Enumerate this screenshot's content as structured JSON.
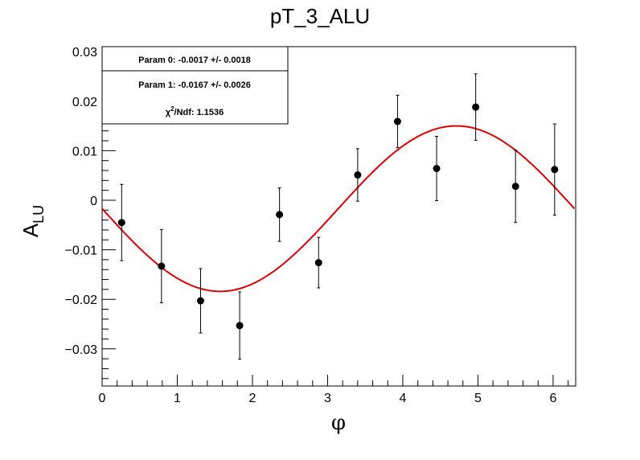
{
  "chart_data": {
    "type": "scatter",
    "title": "pT_3_ALU",
    "xlabel": "φ",
    "ylabel_main": "A",
    "ylabel_sub": "LU",
    "xlim": [
      0,
      6.3
    ],
    "ylim": [
      -0.0375,
      0.031
    ],
    "x_ticks": [
      0,
      1,
      2,
      3,
      4,
      5,
      6
    ],
    "x_tick_labels": [
      "0",
      "1",
      "2",
      "3",
      "4",
      "5",
      "6"
    ],
    "y_ticks": [
      -0.03,
      -0.02,
      -0.01,
      0,
      0.01,
      0.02,
      0.03
    ],
    "y_tick_labels": [
      "−0.03",
      "−0.02",
      "−0.01",
      "0",
      "0.01",
      "0.02",
      "0.03"
    ],
    "grid": false,
    "series": [
      {
        "kind": "points-with-errors",
        "color": "#000000",
        "points": [
          {
            "x": 0.26,
            "y": -0.0045,
            "err": 0.0077
          },
          {
            "x": 0.79,
            "y": -0.0133,
            "err": 0.0074
          },
          {
            "x": 1.31,
            "y": -0.0203,
            "err": 0.0065
          },
          {
            "x": 1.83,
            "y": -0.0253,
            "err": 0.0068
          },
          {
            "x": 2.36,
            "y": -0.0029,
            "err": 0.0054
          },
          {
            "x": 2.88,
            "y": -0.0126,
            "err": 0.0051
          },
          {
            "x": 3.4,
            "y": 0.0051,
            "err": 0.0053
          },
          {
            "x": 3.93,
            "y": 0.0159,
            "err": 0.0053
          },
          {
            "x": 4.45,
            "y": 0.0064,
            "err": 0.0065
          },
          {
            "x": 4.97,
            "y": 0.0188,
            "err": 0.0067
          },
          {
            "x": 5.5,
            "y": 0.0028,
            "err": 0.0073
          },
          {
            "x": 6.02,
            "y": 0.0062,
            "err": 0.0092
          }
        ]
      },
      {
        "kind": "fit",
        "function": "p0 + p1*sin(x)",
        "p0": -0.0017,
        "p1": -0.0167,
        "x_range": [
          0,
          6.283
        ],
        "color": "#e00000"
      }
    ],
    "stats_box": {
      "position": "top-left",
      "line1": "Param 0: -0.0017 +/- 0.0018",
      "line2": "Param 1: -0.0167 +/- 0.0026",
      "line3_chi": "χ",
      "line3_sup": "2",
      "line3_rest": "/Ndf: 1.1536"
    }
  }
}
